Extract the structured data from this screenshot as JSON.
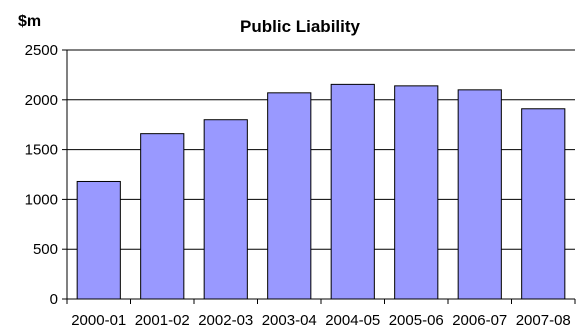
{
  "chart_data": {
    "type": "bar",
    "title": "Public Liability",
    "ylabel": "$m",
    "xlabel": "",
    "categories": [
      "2000-01",
      "2001-02",
      "2002-03",
      "2003-04",
      "2004-05",
      "2005-06",
      "2006-07",
      "2007-08"
    ],
    "values": [
      1180,
      1660,
      1800,
      2070,
      2155,
      2140,
      2100,
      1910
    ],
    "ylim": [
      0,
      2500
    ],
    "yticks": [
      "0",
      "500",
      "1000",
      "1500",
      "2000",
      "2500"
    ],
    "grid": true,
    "legend": "none",
    "colors": {
      "bar_fill": "#9999ff",
      "bar_stroke": "#000000",
      "gridline": "#000000",
      "axis": "#000000"
    }
  }
}
